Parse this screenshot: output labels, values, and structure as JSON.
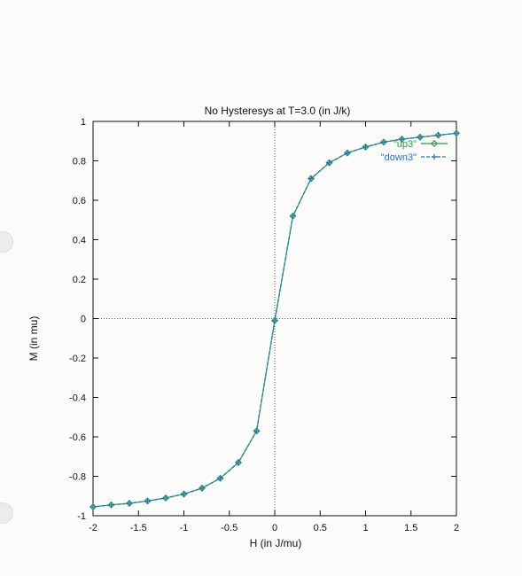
{
  "chart_data": {
    "type": "line",
    "title": "No Hysteresys at T=3.0 (in J/k)",
    "xlabel": "H (in J/mu)",
    "ylabel": "M (in mu)",
    "xlim": [
      -2,
      2
    ],
    "ylim": [
      -1,
      1
    ],
    "x_ticks": [
      "-2",
      "-1.5",
      "-1",
      "-0.5",
      "0",
      "0.5",
      "1",
      "1.5",
      "2"
    ],
    "y_ticks": [
      "1",
      "0.8",
      "0.6",
      "0.4",
      "0.2",
      "0",
      "-0.2",
      "-0.4",
      "-0.6",
      "-0.8",
      "-1"
    ],
    "grid": false,
    "zero_axes": true,
    "legend_position": "top-right",
    "series": [
      {
        "name": "\"up3\"",
        "color": "#2e9e3e",
        "marker": "diamond",
        "x": [
          -2.0,
          -1.8,
          -1.6,
          -1.4,
          -1.2,
          -1.0,
          -0.8,
          -0.6,
          -0.4,
          -0.2,
          0.0,
          0.2,
          0.4,
          0.6,
          0.8,
          1.0,
          1.2,
          1.4,
          1.6,
          1.8,
          2.0
        ],
        "y": [
          -0.955,
          -0.945,
          -0.937,
          -0.925,
          -0.91,
          -0.89,
          -0.86,
          -0.81,
          -0.73,
          -0.57,
          -0.01,
          0.52,
          0.71,
          0.79,
          0.84,
          0.87,
          0.895,
          0.91,
          0.92,
          0.93,
          0.94
        ]
      },
      {
        "name": "\"down3\"",
        "color": "#1f72c4",
        "marker": "plus",
        "x": [
          2.0,
          1.8,
          1.6,
          1.4,
          1.2,
          1.0,
          0.8,
          0.6,
          0.4,
          0.2,
          0.0,
          -0.2,
          -0.4,
          -0.6,
          -0.8,
          -1.0,
          -1.2,
          -1.4,
          -1.6,
          -1.8,
          -2.0
        ],
        "y": [
          0.94,
          0.93,
          0.92,
          0.91,
          0.895,
          0.87,
          0.84,
          0.79,
          0.71,
          0.52,
          -0.01,
          -0.57,
          -0.73,
          -0.81,
          -0.86,
          -0.89,
          -0.91,
          -0.925,
          -0.937,
          -0.945,
          -0.955
        ]
      }
    ]
  }
}
